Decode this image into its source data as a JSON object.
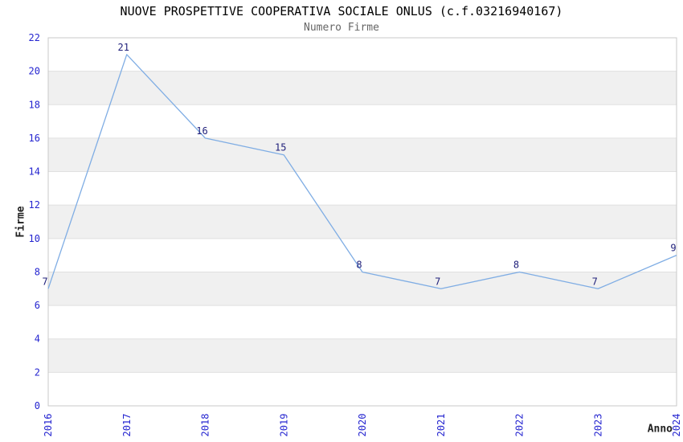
{
  "chart_data": {
    "type": "line",
    "title": "NUOVE PROSPETTIVE COOPERATIVA SOCIALE ONLUS (c.f.03216940167)",
    "subtitle": "Numero Firme",
    "xlabel": "Anno",
    "ylabel": "Firme",
    "categories": [
      "2016",
      "2017",
      "2018",
      "2019",
      "2020",
      "2021",
      "2022",
      "2023",
      "2024"
    ],
    "values": [
      7,
      21,
      16,
      15,
      8,
      7,
      8,
      7,
      9
    ],
    "ylim": [
      0,
      22
    ],
    "ytick_step": 2,
    "legend": "none",
    "grid": "horizontal-banded",
    "layout": {
      "x_tick_rotation_deg": -90,
      "data_labels_shown": true
    },
    "colors": {
      "line": "#7fade4",
      "band": "#f0f0f0",
      "gridline": "#e0e0e0",
      "border": "#c9c9c9",
      "tick_label": "#2525d0",
      "data_label": "#1f1f7a",
      "title": "#000000",
      "subtitle": "#666666",
      "axis_label": "#222222",
      "background": "#ffffff"
    }
  }
}
